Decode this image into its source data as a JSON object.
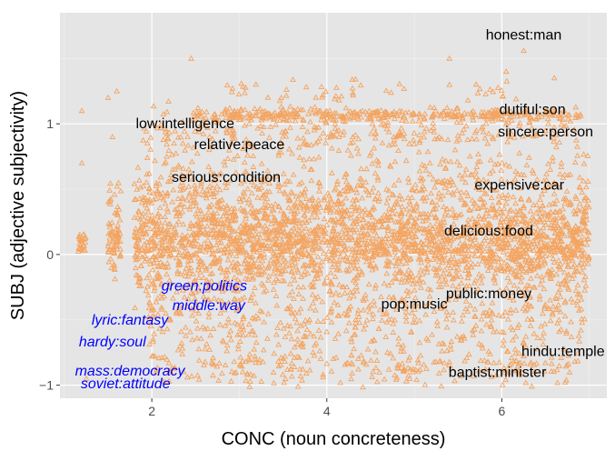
{
  "chart_data": {
    "type": "scatter",
    "xlabel": "CONC (noun concreteness)",
    "ylabel": "SUBJ (adjective subjectivity)",
    "xlim": [
      0.95,
      7.2
    ],
    "ylim": [
      -1.1,
      1.85
    ],
    "x_ticks": [
      2,
      4,
      6
    ],
    "x_tick_labels": [
      "2",
      "4",
      "6"
    ],
    "y_ticks": [
      -1,
      0,
      1
    ],
    "y_tick_labels": [
      "−1",
      "0",
      "1"
    ],
    "grid": true,
    "panel_background": "#e5e5e5",
    "grid_color": "#ffffff",
    "marker": "triangle-open",
    "marker_color": "#f4a460",
    "annotations": [
      {
        "text": "honest:man",
        "x": 6.25,
        "y": 1.68,
        "style": "black"
      },
      {
        "text": "dutiful:son",
        "x": 6.35,
        "y": 1.11,
        "style": "black"
      },
      {
        "text": "sincere:person",
        "x": 6.5,
        "y": 0.94,
        "style": "black"
      },
      {
        "text": "low:intelligence",
        "x": 2.38,
        "y": 1.0,
        "style": "black"
      },
      {
        "text": "relative:peace",
        "x": 3.0,
        "y": 0.84,
        "style": "black"
      },
      {
        "text": "serious:condition",
        "x": 2.85,
        "y": 0.59,
        "style": "black"
      },
      {
        "text": "expensive:car",
        "x": 6.2,
        "y": 0.53,
        "style": "black"
      },
      {
        "text": "delicious:food",
        "x": 5.85,
        "y": 0.18,
        "style": "black"
      },
      {
        "text": "public:money",
        "x": 5.85,
        "y": -0.3,
        "style": "black"
      },
      {
        "text": "pop:music",
        "x": 5.0,
        "y": -0.38,
        "style": "black"
      },
      {
        "text": "hindu:temple",
        "x": 6.7,
        "y": -0.74,
        "style": "black"
      },
      {
        "text": "baptist:minister",
        "x": 5.95,
        "y": -0.9,
        "style": "black"
      },
      {
        "text": "green:politics",
        "x": 2.6,
        "y": -0.24,
        "style": "blue"
      },
      {
        "text": "middle:way",
        "x": 2.65,
        "y": -0.39,
        "style": "blue"
      },
      {
        "text": "lyric:fantasy",
        "x": 1.75,
        "y": -0.5,
        "style": "blue"
      },
      {
        "text": "hardy:soul",
        "x": 1.55,
        "y": -0.67,
        "style": "blue"
      },
      {
        "text": "mass:democracy",
        "x": 1.75,
        "y": -0.89,
        "style": "blue"
      },
      {
        "text": "soviet:attitude",
        "x": 1.7,
        "y": -0.99,
        "style": "blue"
      }
    ],
    "point_bands": [
      {
        "y": 0.08,
        "spread": 0.22,
        "xmin": 1.8,
        "xmax": 7.0,
        "count": 1400
      },
      {
        "y": 0.3,
        "spread": 0.25,
        "xmin": 1.8,
        "xmax": 7.0,
        "count": 700
      },
      {
        "y": -0.15,
        "spread": 0.25,
        "xmin": 1.8,
        "xmax": 7.0,
        "count": 500
      },
      {
        "y": 0.55,
        "spread": 0.35,
        "xmin": 1.8,
        "xmax": 7.0,
        "count": 450
      },
      {
        "y": 1.07,
        "spread": 0.05,
        "xmin": 2.4,
        "xmax": 6.9,
        "count": 350
      },
      {
        "y": 0.95,
        "spread": 0.15,
        "xmin": 1.9,
        "xmax": 6.9,
        "count": 250
      },
      {
        "y": -0.5,
        "spread": 0.3,
        "xmin": 1.9,
        "xmax": 7.0,
        "count": 450
      },
      {
        "y": -0.85,
        "spread": 0.15,
        "xmin": 2.0,
        "xmax": 6.9,
        "count": 250
      },
      {
        "y": 0.1,
        "spread": 0.1,
        "xmin": 1.15,
        "xmax": 1.25,
        "count": 25
      },
      {
        "y": 0.15,
        "spread": 0.35,
        "xmin": 1.5,
        "xmax": 1.65,
        "count": 80
      },
      {
        "y": 1.25,
        "spread": 0.12,
        "xmin": 2.5,
        "xmax": 6.2,
        "count": 50
      }
    ],
    "outliers": [
      {
        "x": 1.2,
        "y": 1.1
      },
      {
        "x": 1.2,
        "y": 0.7
      },
      {
        "x": 1.25,
        "y": -0.95
      },
      {
        "x": 1.5,
        "y": 1.2
      },
      {
        "x": 1.6,
        "y": 1.25
      },
      {
        "x": 1.55,
        "y": 0.9
      },
      {
        "x": 6.25,
        "y": 1.56
      },
      {
        "x": 6.05,
        "y": 1.4
      },
      {
        "x": 2.45,
        "y": 1.5
      },
      {
        "x": 6.6,
        "y": 1.35
      },
      {
        "x": 5.4,
        "y": 1.5
      }
    ]
  }
}
